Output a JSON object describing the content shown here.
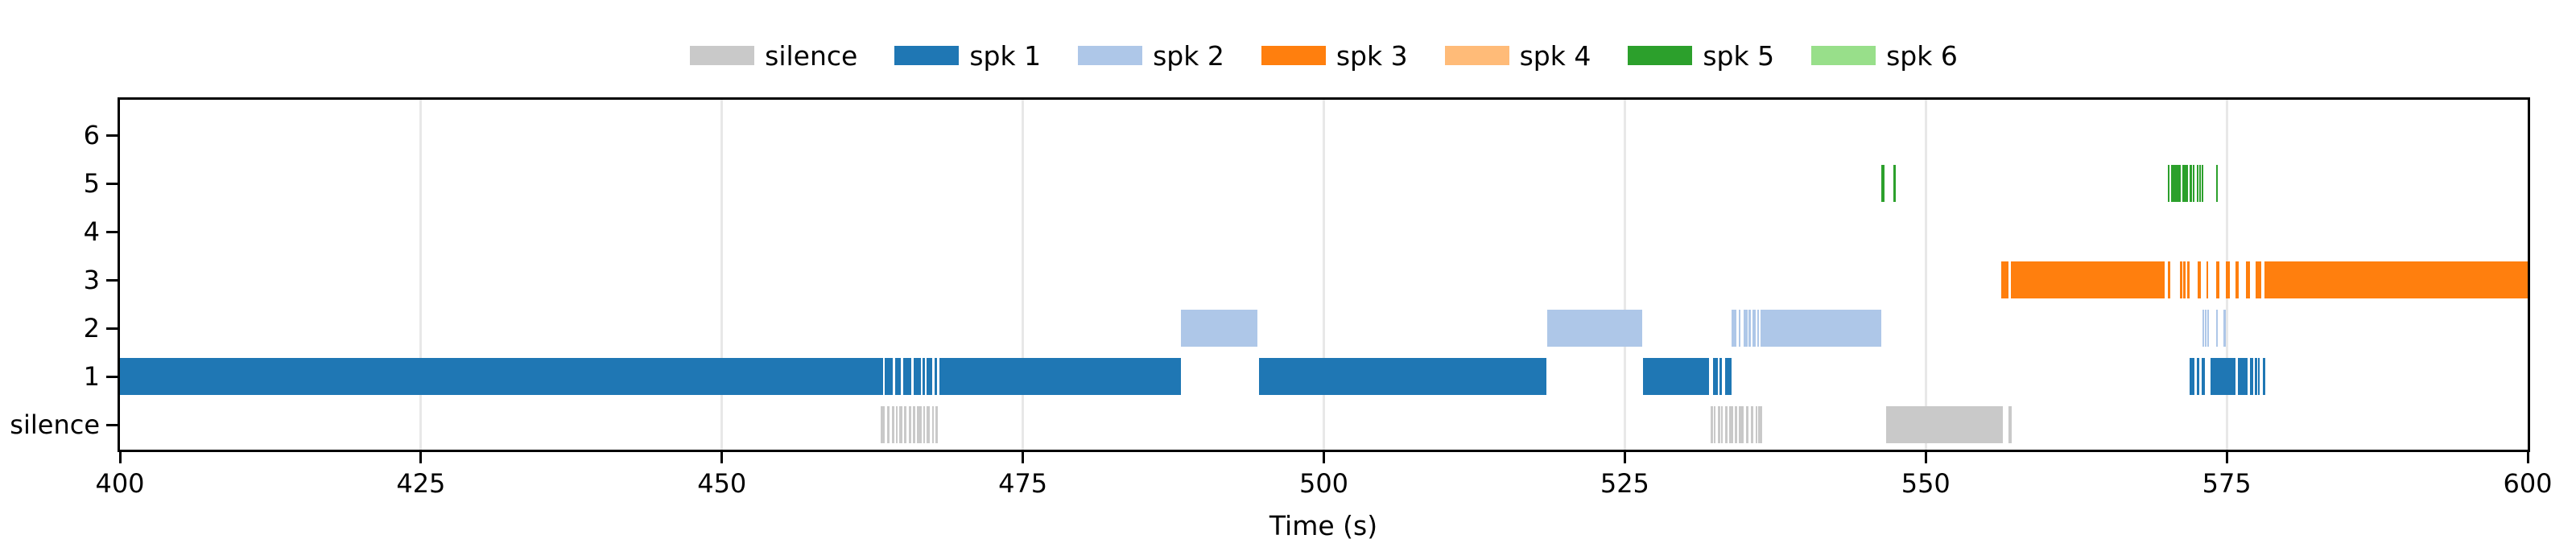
{
  "figure": {
    "background": "#ffffff"
  },
  "legend": {
    "items": [
      {
        "label": "silence",
        "color": "#c9c9c9"
      },
      {
        "label": "spk 1",
        "color": "#1f77b4"
      },
      {
        "label": "spk 2",
        "color": "#aec7e8"
      },
      {
        "label": "spk 3",
        "color": "#ff7f0e"
      },
      {
        "label": "spk 4",
        "color": "#ffbb78"
      },
      {
        "label": "spk 5",
        "color": "#2ca02c"
      },
      {
        "label": "spk 6",
        "color": "#98df8a"
      }
    ]
  },
  "axes": {
    "xlabel": "Time (s)",
    "x_tick_labels": [
      "400",
      "425",
      "450",
      "475",
      "500",
      "525",
      "550",
      "575",
      "600"
    ],
    "y_tick_labels_top_to_bottom": [
      "6",
      "5",
      "4",
      "3",
      "2",
      "1",
      "silence"
    ]
  },
  "chart_data": {
    "type": "timeline",
    "title": "",
    "xlabel": "Time (s)",
    "xlim": [
      400,
      600
    ],
    "x_ticks": [
      400,
      425,
      450,
      475,
      500,
      525,
      550,
      575,
      600
    ],
    "x_gridlines": [
      425,
      450,
      475,
      500,
      525,
      550,
      575
    ],
    "grid": true,
    "legend_position": "top-center",
    "rows_bottom_to_top": [
      "silence",
      "1",
      "2",
      "3",
      "4",
      "5",
      "6"
    ],
    "series": [
      {
        "name": "silence",
        "row": "silence",
        "color": "#c9c9c9",
        "segments": [
          [
            463.2,
            463.5
          ],
          [
            463.7,
            463.9
          ],
          [
            464.1,
            464.3
          ],
          [
            464.45,
            464.6
          ],
          [
            464.7,
            465.0
          ],
          [
            465.15,
            465.35
          ],
          [
            465.5,
            465.7
          ],
          [
            465.85,
            466.05
          ],
          [
            466.2,
            466.6
          ],
          [
            466.75,
            466.9
          ],
          [
            467.0,
            467.3
          ],
          [
            467.45,
            467.6
          ],
          [
            467.75,
            467.95
          ],
          [
            532.1,
            532.3
          ],
          [
            532.4,
            532.55
          ],
          [
            532.7,
            532.9
          ],
          [
            533.0,
            533.15
          ],
          [
            533.35,
            533.55
          ],
          [
            533.7,
            534.0
          ],
          [
            534.15,
            534.35
          ],
          [
            534.5,
            534.9
          ],
          [
            535.05,
            535.3
          ],
          [
            535.45,
            535.7
          ],
          [
            535.85,
            536.0
          ],
          [
            536.1,
            536.4
          ],
          [
            546.7,
            556.4
          ],
          [
            556.85,
            557.15
          ]
        ]
      },
      {
        "name": "spk 1",
        "row": "1",
        "color": "#1f77b4",
        "segments": [
          [
            400.0,
            463.4
          ],
          [
            463.55,
            464.2
          ],
          [
            464.4,
            464.85
          ],
          [
            465.05,
            465.7
          ],
          [
            465.9,
            466.5
          ],
          [
            466.65,
            466.85
          ],
          [
            467.0,
            467.5
          ],
          [
            467.65,
            467.9
          ],
          [
            468.05,
            488.1
          ],
          [
            494.6,
            518.5
          ],
          [
            526.5,
            532.0
          ],
          [
            532.35,
            532.7
          ],
          [
            532.85,
            533.05
          ],
          [
            533.3,
            533.85
          ],
          [
            571.9,
            572.3
          ],
          [
            572.5,
            572.75
          ],
          [
            572.9,
            573.2
          ],
          [
            573.65,
            575.75
          ],
          [
            575.95,
            576.75
          ],
          [
            576.9,
            577.2
          ],
          [
            577.3,
            577.5
          ],
          [
            577.6,
            577.75
          ],
          [
            578.0,
            578.2
          ]
        ]
      },
      {
        "name": "spk 2",
        "row": "2",
        "color": "#aec7e8",
        "segments": [
          [
            488.15,
            494.5
          ],
          [
            518.55,
            526.45
          ],
          [
            533.9,
            534.3
          ],
          [
            534.45,
            534.6
          ],
          [
            534.9,
            535.2
          ],
          [
            535.3,
            535.45
          ],
          [
            535.6,
            535.85
          ],
          [
            536.0,
            536.1
          ],
          [
            536.3,
            546.3
          ],
          [
            573.0,
            573.1
          ],
          [
            573.2,
            573.3
          ],
          [
            573.4,
            573.5
          ],
          [
            574.1,
            574.25
          ],
          [
            574.75,
            574.9
          ]
        ]
      },
      {
        "name": "spk 3",
        "row": "3",
        "color": "#ff7f0e",
        "segments": [
          [
            556.3,
            556.9
          ],
          [
            557.1,
            569.85
          ],
          [
            570.1,
            570.3
          ],
          [
            571.1,
            571.3
          ],
          [
            571.4,
            571.55
          ],
          [
            571.7,
            571.9
          ],
          [
            572.6,
            572.85
          ],
          [
            573.3,
            573.45
          ],
          [
            574.1,
            574.4
          ],
          [
            574.9,
            575.25
          ],
          [
            575.7,
            576.0
          ],
          [
            576.6,
            576.9
          ],
          [
            577.4,
            577.9
          ],
          [
            578.15,
            600.0
          ]
        ]
      },
      {
        "name": "spk 4",
        "row": "4",
        "color": "#ffbb78",
        "segments": []
      },
      {
        "name": "spk 5",
        "row": "5",
        "color": "#2ca02c",
        "segments": [
          [
            546.3,
            546.6
          ],
          [
            547.3,
            547.5
          ],
          [
            570.1,
            570.25
          ],
          [
            570.35,
            571.15
          ],
          [
            571.3,
            571.8
          ],
          [
            571.9,
            572.1
          ],
          [
            572.2,
            572.35
          ],
          [
            572.5,
            572.6
          ],
          [
            572.7,
            572.8
          ],
          [
            572.9,
            573.0
          ],
          [
            574.1,
            574.25
          ]
        ]
      },
      {
        "name": "spk 6",
        "row": "6",
        "color": "#98df8a",
        "segments": []
      }
    ]
  }
}
